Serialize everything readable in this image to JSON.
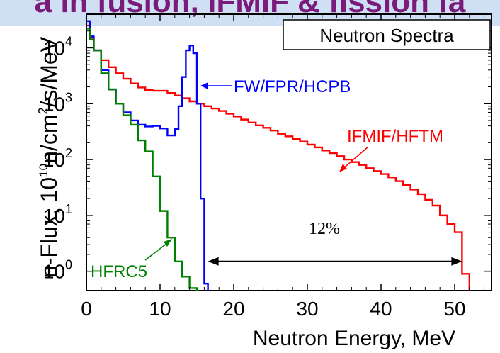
{
  "banner": {
    "text": "a in fusion, IFMIF & fission fa"
  },
  "chart_data": {
    "type": "line",
    "title": "Neutron Spectra",
    "xlabel": "Neutron Energy,   MeV",
    "ylabel": "n-Flux, 10^10 n/cm^2/s/MeV",
    "ylabel_parts": {
      "a": "n-Flux, 10",
      "sup1": "10",
      "b": "n/cm",
      "sup2": "2",
      "c": "/s/MeV"
    },
    "xlim": [
      0,
      55
    ],
    "ylim": [
      0.45,
      40000
    ],
    "y_scale": "log",
    "x_ticks": [
      0,
      10,
      20,
      30,
      40,
      50
    ],
    "x_tick_labels": [
      "0",
      "10",
      "20",
      "30",
      "40",
      "50"
    ],
    "y_ticks": [
      1,
      10,
      100,
      1000,
      10000
    ],
    "y_tick_labels": [
      {
        "base": "10",
        "exp": "0"
      },
      {
        "base": "10",
        "exp": "1"
      },
      {
        "base": "10",
        "exp": "2"
      },
      {
        "base": "10",
        "exp": "3"
      },
      {
        "base": "10",
        "exp": "4"
      }
    ],
    "grid": false,
    "series": [
      {
        "name": "IFMIF/HFTM",
        "color": "#ff0000",
        "step": true,
        "x": [
          0.1,
          0.5,
          1,
          2,
          3,
          4,
          5,
          6,
          7,
          8,
          9,
          10,
          11,
          12,
          13,
          14,
          15,
          16,
          17,
          18,
          19,
          20,
          21,
          22,
          23,
          24,
          25,
          26,
          27,
          28,
          29,
          30,
          31,
          32,
          33,
          34,
          35,
          36,
          37,
          38,
          39,
          40,
          41,
          42,
          43,
          44,
          45,
          46,
          47,
          48,
          49,
          50,
          51,
          52
        ],
        "y": [
          25000,
          15000,
          9000,
          6000,
          4500,
          3500,
          2800,
          2300,
          1950,
          1750,
          1700,
          1700,
          1550,
          1400,
          1250,
          1100,
          1000,
          900,
          820,
          740,
          660,
          590,
          520,
          460,
          410,
          370,
          330,
          290,
          260,
          235,
          210,
          185,
          165,
          145,
          130,
          115,
          100,
          90,
          80,
          70,
          62,
          55,
          48,
          41,
          35,
          29,
          24,
          19,
          15,
          10,
          7,
          5,
          0.9,
          0.45
        ]
      },
      {
        "name": "FW/FPR/HCPB",
        "color": "#0000ff",
        "step": true,
        "x": [
          0.1,
          0.5,
          1,
          2,
          3,
          4,
          5,
          6,
          7,
          8,
          9,
          10,
          11,
          12,
          12.5,
          13,
          13.5,
          14,
          14.5,
          15,
          15.5,
          16,
          16.5
        ],
        "y": [
          30000,
          16000,
          9000,
          4000,
          1800,
          1000,
          700,
          500,
          420,
          390,
          400,
          360,
          270,
          350,
          900,
          3000,
          9000,
          11000,
          8000,
          1000,
          20,
          0.6,
          0.45
        ]
      },
      {
        "name": "HFRC5",
        "color": "#008000",
        "step": true,
        "x": [
          0.1,
          0.5,
          1,
          2,
          3,
          4,
          5,
          6,
          7,
          8,
          9,
          10,
          11,
          12,
          13,
          14,
          15
        ],
        "y": [
          22000,
          14000,
          9000,
          3500,
          1800,
          1000,
          620,
          420,
          220,
          140,
          50,
          12,
          4,
          1.5,
          0.8,
          0.5,
          0.45
        ]
      }
    ],
    "annotations": [
      {
        "text": "FW/FPR/HCPB",
        "color": "#0000ff"
      },
      {
        "text": "IFMIF/HFTM",
        "color": "#ff0000"
      },
      {
        "text": "HFRC5",
        "color": "#008000"
      }
    ],
    "range_label": {
      "text": "12%",
      "x_start": 16.5,
      "x_end": 51,
      "y": 1.5
    },
    "legend_box": "top-right"
  }
}
